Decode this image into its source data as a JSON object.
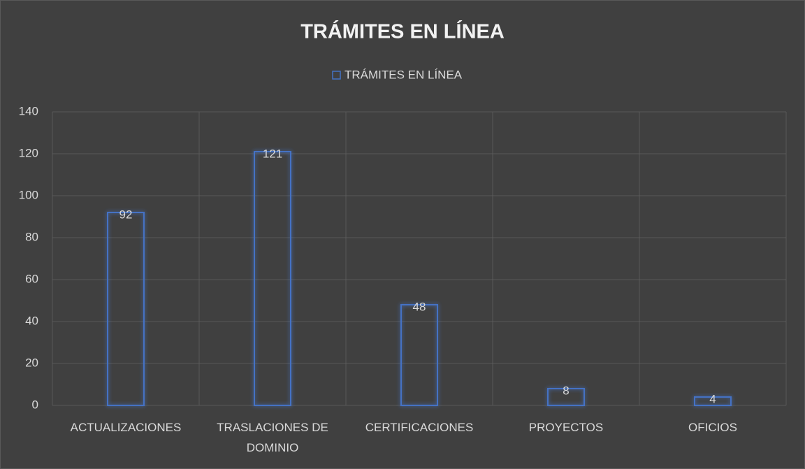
{
  "chart_data": {
    "type": "bar",
    "title": "TRÁMITES EN LÍNEA",
    "categories": [
      "ACTUALIZACIONES",
      "TRASLACIONES DE DOMINIO",
      "CERTIFICACIONES",
      "PROYECTOS",
      "OFICIOS"
    ],
    "series": [
      {
        "name": "TRÁMITES EN LÍNEA",
        "color": "#4472c4",
        "values": [
          92,
          121,
          48,
          8,
          4
        ]
      }
    ],
    "ylim": [
      0,
      140
    ],
    "yticks": [
      0,
      20,
      40,
      60,
      80,
      100,
      120,
      140
    ],
    "grid": true,
    "legend": "top"
  }
}
